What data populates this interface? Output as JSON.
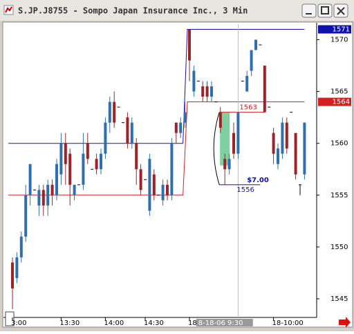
{
  "window_title": "S.JP.J8755 - Sompo Japan Insurance Inc., 3 Min",
  "chart_data": {
    "type": "candlestick",
    "up_color": "#2f6fae",
    "down_color": "#9e2328",
    "flat_color": "#000000",
    "categories": [
      "3:00",
      null,
      null,
      null,
      null,
      null,
      null,
      null,
      null,
      null,
      null,
      "13:30",
      null,
      null,
      null,
      null,
      null,
      null,
      null,
      null,
      null,
      "14:00",
      null,
      null,
      null,
      null,
      null,
      null,
      null,
      null,
      "14:30",
      null,
      null,
      null,
      null,
      null,
      null,
      null,
      null,
      null,
      "18-",
      null,
      null,
      null,
      null,
      null,
      null,
      null,
      null,
      null,
      null,
      null,
      null,
      null,
      null,
      null,
      null,
      null,
      null,
      "18-10:00",
      null,
      null,
      null,
      null,
      null,
      null,
      null
    ],
    "open": [
      1548.5,
      1547,
      1549,
      1551,
      1555,
      1555.5,
      1554,
      1555.5,
      1554,
      1556,
      1555,
      1557,
      1560,
      1559,
      1555,
      1556,
      1556,
      1560,
      1557.5,
      1558.5,
      1557.5,
      1559,
      1562,
      1564,
      1563.5,
      1562,
      1562.5,
      1560,
      1560,
      1557.5,
      1556.5,
      1553.5,
      1557,
      1555,
      1554.5,
      1556,
      1555,
      1562,
      1561,
      1562,
      1571,
      1565,
      1566,
      1565.5,
      1565.5,
      1564.5,
      1564,
      1563,
      1558.5,
      1557.5,
      1561,
      1559,
      1566,
      1565,
      1567,
      1569,
      1569.5,
      1567.5,
      1563.5,
      1561,
      1558,
      1559,
      1562,
      1563,
      1561,
      1556,
      1557
    ],
    "high": [
      1549,
      1549.5,
      1551.5,
      1556,
      1558,
      1555.5,
      1556,
      1556,
      1556.5,
      1556.5,
      1558.5,
      1561,
      1561,
      1559.5,
      1556,
      1556,
      1561,
      1561,
      1557.5,
      1559,
      1559.5,
      1562.5,
      1564.5,
      1565,
      1563.5,
      1562,
      1563,
      1562.5,
      1560.5,
      1558,
      1556.5,
      1559,
      1557.5,
      1555,
      1556.5,
      1556.5,
      1560.5,
      1562,
      1562.5,
      1564,
      1571,
      1567.5,
      1566,
      1566,
      1566,
      1566,
      1564,
      1563.5,
      1559,
      1559,
      1562,
      1563,
      1566,
      1567,
      1569,
      1570,
      1569.5,
      1567.5,
      1563.5,
      1561.5,
      1560,
      1562.5,
      1562.5,
      1563,
      1561,
      1556,
      1562
    ],
    "low": [
      1544,
      1546.5,
      1548.5,
      1550.5,
      1554,
      1555.5,
      1553,
      1553,
      1553,
      1554,
      1554.5,
      1556,
      1556,
      1554,
      1554.5,
      1556,
      1555.5,
      1558,
      1557.5,
      1557,
      1557,
      1558.5,
      1561,
      1561.5,
      1563.5,
      1562,
      1559.5,
      1559.5,
      1556,
      1555,
      1556.5,
      1553,
      1554.5,
      1555,
      1554,
      1554.5,
      1554.5,
      1560,
      1560.5,
      1561.5,
      1566,
      1564.5,
      1566,
      1564,
      1564,
      1564,
      1564,
      1561,
      1556,
      1557,
      1558.5,
      1558.5,
      1566,
      1565,
      1566.5,
      1569,
      1569.5,
      1563,
      1563.5,
      1558,
      1557.5,
      1558.5,
      1559,
      1563,
      1556.5,
      1555,
      1556.5
    ],
    "close": [
      1546,
      1549,
      1551,
      1555,
      1558,
      1555.5,
      1555.5,
      1554,
      1556,
      1555,
      1558,
      1560,
      1558,
      1556,
      1556,
      1556,
      1559,
      1558.5,
      1557.5,
      1557.5,
      1559,
      1562,
      1564,
      1562,
      1563.5,
      1562,
      1560,
      1562,
      1557.5,
      1555.5,
      1556.5,
      1558.5,
      1555,
      1555,
      1556,
      1555,
      1560,
      1561,
      1562,
      1563,
      1568,
      1567,
      1566,
      1564.5,
      1564.5,
      1565.5,
      1564,
      1561.5,
      1557.5,
      1558.5,
      1559,
      1563,
      1566,
      1566.5,
      1569,
      1570,
      1569.5,
      1563,
      1563.5,
      1559,
      1559.5,
      1562,
      1559.5,
      1563,
      1557,
      1556,
      1562
    ],
    "levels": [
      {
        "color": "#1010b0",
        "values": [
          1560,
          1560,
          1560,
          1560,
          1560,
          1560,
          1560,
          1560,
          1560,
          1560,
          1560,
          1560,
          1560,
          1560,
          1560,
          1560,
          1560,
          1560,
          1560,
          1560,
          1560,
          1560,
          1560,
          1560,
          1560,
          1560,
          1560,
          1560,
          1560,
          1560,
          1560,
          1560,
          1560,
          1560,
          1560,
          1560,
          1560,
          1560,
          1560,
          1560,
          1571,
          1571,
          1571,
          1571,
          1571,
          1571,
          1571,
          1571,
          1571,
          1571,
          1571,
          1571,
          1571,
          1571,
          1571,
          1571,
          1571,
          1571,
          1571,
          1571,
          1571,
          1571,
          1571,
          1571,
          1571,
          1571,
          1571
        ]
      },
      {
        "color": "#d02020",
        "values": [
          1555,
          1555,
          1555,
          1555,
          1555,
          1555,
          1555,
          1555,
          1555,
          1555,
          1555,
          1555,
          1555,
          1555,
          1555,
          1555,
          1555,
          1555,
          1555,
          1555,
          1555,
          1555,
          1555,
          1555,
          1555,
          1555,
          1555,
          1555,
          1555,
          1555,
          1555,
          1555,
          1555,
          1555,
          1555,
          1555,
          1555,
          1555,
          1555,
          1555,
          1564,
          1564,
          1564,
          1564,
          1564,
          1564,
          1564,
          1564,
          1564,
          1564,
          1564,
          1564,
          1564,
          1564,
          1564,
          1564,
          1564,
          1564,
          1564,
          1564,
          1564,
          1564,
          1564,
          1564,
          1564,
          1564,
          1564
        ]
      }
    ],
    "price_tags": [
      {
        "value": 1571,
        "color": "#1010b0"
      },
      {
        "value": 1564,
        "color": "#d02020"
      }
    ],
    "measure": {
      "high": 1563,
      "low": 1556,
      "label": "$7.00"
    },
    "cursor_label": "8-18-06  9:30",
    "ylim": [
      1543.2,
      1571.5
    ],
    "yticks": [
      1545,
      1550,
      1555,
      1560,
      1565,
      1570
    ]
  }
}
